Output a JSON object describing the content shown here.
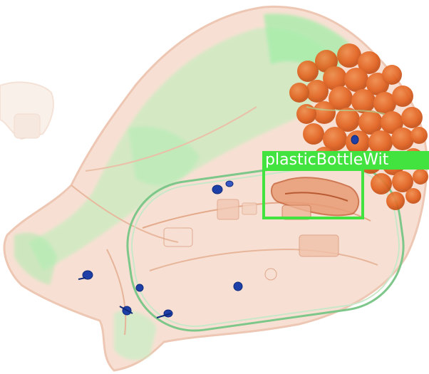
{
  "image": {
    "type": "x-ray baggage scan",
    "background": "#ffffff"
  },
  "detection": {
    "label": "plasticBottleWit",
    "color": "#43e33f"
  },
  "colors": {
    "organic_orange": "#e8651e",
    "light_orange": "#f3c7b0",
    "green_tint": "#8ee89a",
    "metal_blue": "#1e3fa8"
  }
}
